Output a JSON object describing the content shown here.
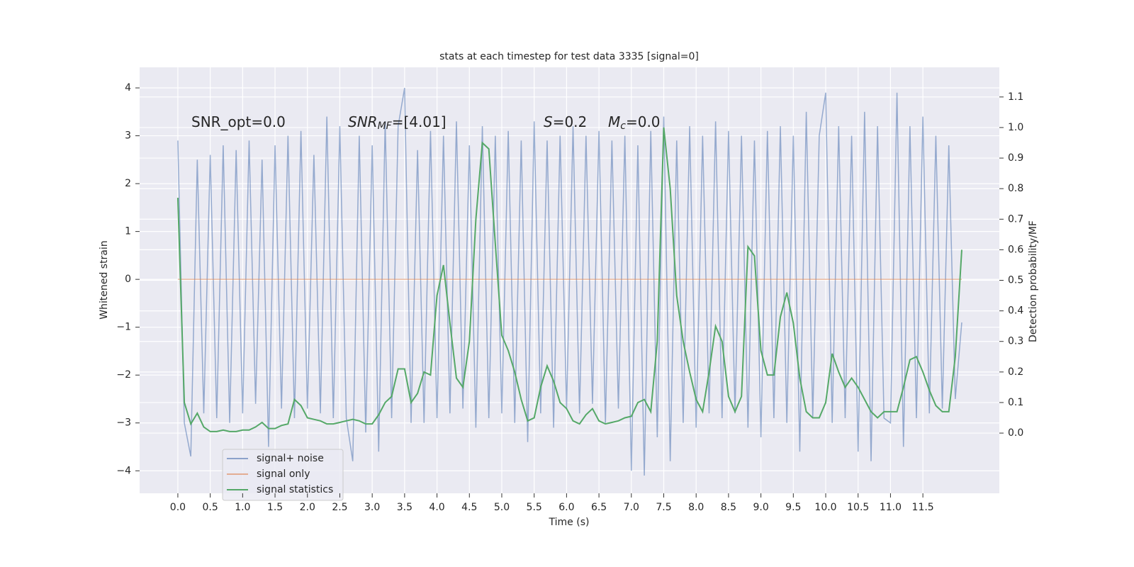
{
  "chart_data": {
    "type": "line",
    "title": "stats at each timestep for test data 3335 [signal=0]",
    "xlabel": "Time (s)",
    "ylabel": "Whitened strain",
    "y2label": "Detection probability/MF",
    "annotations": [
      {
        "text": "SNR_opt=0.0"
      },
      {
        "symbol": "SNR",
        "sub": "MF",
        "text": "=[4.01]"
      },
      {
        "symbol": "S",
        "text": "=0.2"
      },
      {
        "symbol": "M",
        "sub": "c",
        "text": "=0.0"
      }
    ],
    "xlim": [
      -0.59,
      12.68
    ],
    "ylim": [
      -4.47,
      4.43
    ],
    "y2lim": [
      -0.197,
      1.197
    ],
    "xticks": [
      {
        "value": 0,
        "label": "0.0"
      },
      {
        "value": 0.5,
        "label": "0.5"
      },
      {
        "value": 1,
        "label": "1.0"
      },
      {
        "value": 1.5,
        "label": "1.5"
      },
      {
        "value": 2,
        "label": "2.0"
      },
      {
        "value": 2.5,
        "label": "2.5"
      },
      {
        "value": 3,
        "label": "3.0"
      },
      {
        "value": 3.5,
        "label": "3.5"
      },
      {
        "value": 4,
        "label": "4.0"
      },
      {
        "value": 4.5,
        "label": "4.5"
      },
      {
        "value": 5,
        "label": "5.0"
      },
      {
        "value": 5.5,
        "label": "5.5"
      },
      {
        "value": 6,
        "label": "6.0"
      },
      {
        "value": 6.5,
        "label": "6.5"
      },
      {
        "value": 7,
        "label": "7.0"
      },
      {
        "value": 7.5,
        "label": "7.5"
      },
      {
        "value": 8,
        "label": "8.0"
      },
      {
        "value": 8.5,
        "label": "8.5"
      },
      {
        "value": 9,
        "label": "9.0"
      },
      {
        "value": 9.5,
        "label": "9.5"
      },
      {
        "value": 10,
        "label": "10.0"
      },
      {
        "value": 10.5,
        "label": "10.5"
      },
      {
        "value": 11,
        "label": "11.0"
      },
      {
        "value": 11.5,
        "label": "11.5"
      }
    ],
    "yticks": [
      {
        "value": -4,
        "label": "−4"
      },
      {
        "value": -3,
        "label": "−3"
      },
      {
        "value": -2,
        "label": "−2"
      },
      {
        "value": -1,
        "label": "−1"
      },
      0,
      1,
      2,
      3,
      4
    ],
    "y2ticks": [
      {
        "value": 0,
        "label": "0.0"
      },
      {
        "value": 0.1,
        "label": "0.1"
      },
      {
        "value": 0.2,
        "label": "0.2"
      },
      {
        "value": 0.3,
        "label": "0.3"
      },
      {
        "value": 0.4,
        "label": "0.4"
      },
      {
        "value": 0.5,
        "label": "0.5"
      },
      {
        "value": 0.6,
        "label": "0.6"
      },
      {
        "value": 0.7,
        "label": "0.7"
      },
      {
        "value": 0.8,
        "label": "0.8"
      },
      {
        "value": 0.9,
        "label": "0.9"
      },
      {
        "value": 1,
        "label": "1.0"
      },
      {
        "value": 1.1,
        "label": "1.1"
      }
    ],
    "grid": true,
    "legend": "lower left",
    "x": [
      0,
      0.1,
      0.2,
      0.3,
      0.4,
      0.5,
      0.6,
      0.7,
      0.8,
      0.9,
      1,
      1.1,
      1.2,
      1.3,
      1.4,
      1.5,
      1.6,
      1.7,
      1.8,
      1.9,
      2,
      2.1,
      2.2,
      2.3,
      2.4,
      2.5,
      2.6,
      2.7,
      2.8,
      2.9,
      3,
      3.1,
      3.2,
      3.3,
      3.4,
      3.5,
      3.6,
      3.7,
      3.8,
      3.9,
      4,
      4.1,
      4.2,
      4.3,
      4.4,
      4.5,
      4.6,
      4.7,
      4.8,
      4.9,
      5,
      5.1,
      5.2,
      5.3,
      5.4,
      5.5,
      5.6,
      5.7,
      5.8,
      5.9,
      6,
      6.1,
      6.2,
      6.3,
      6.4,
      6.5,
      6.6,
      6.7,
      6.8,
      6.9,
      7,
      7.1,
      7.2,
      7.3,
      7.4,
      7.5,
      7.6,
      7.7,
      7.8,
      7.9,
      8,
      8.1,
      8.2,
      8.3,
      8.4,
      8.5,
      8.6,
      8.7,
      8.8,
      8.9,
      9,
      9.1,
      9.2,
      9.3,
      9.4,
      9.5,
      9.6,
      9.7,
      9.8,
      9.9,
      10,
      10.1,
      10.2,
      10.3,
      10.4,
      10.5,
      10.6,
      10.7,
      10.8,
      10.9,
      11,
      11.1,
      11.2,
      11.3,
      11.4,
      11.5,
      11.6,
      11.7,
      11.8,
      11.9,
      12,
      12.1
    ],
    "series": [
      {
        "name": "signal+ noise",
        "color": "#4c72b0",
        "axis": "y",
        "values": [
          2.9,
          -3.0,
          -3.7,
          2.5,
          -2.8,
          2.6,
          -2.9,
          2.8,
          -3.0,
          2.7,
          -2.8,
          2.9,
          -2.6,
          2.5,
          -3.5,
          2.8,
          -2.7,
          3.0,
          -2.9,
          3.1,
          -2.7,
          2.6,
          -2.8,
          3.4,
          -2.9,
          3.2,
          -2.9,
          -3.8,
          3.0,
          -3.2,
          2.8,
          -3.6,
          3.3,
          -2.9,
          3.2,
          4.0,
          -3.0,
          2.7,
          -3.0,
          3.1,
          -2.9,
          3.0,
          -2.8,
          3.3,
          -2.7,
          2.8,
          -3.1,
          3.2,
          -2.9,
          3.0,
          -2.8,
          3.1,
          -3.0,
          2.9,
          -3.4,
          3.3,
          -2.8,
          2.9,
          -3.1,
          3.0,
          -2.7,
          3.2,
          -2.8,
          3.0,
          -2.6,
          3.1,
          -3.0,
          2.9,
          -2.7,
          3.0,
          -4.0,
          2.8,
          -4.1,
          3.1,
          -3.3,
          3.4,
          -3.8,
          2.9,
          -3.0,
          3.2,
          -3.1,
          3.0,
          -2.8,
          3.3,
          -2.9,
          3.1,
          -2.8,
          3.0,
          -3.1,
          2.9,
          -3.3,
          3.1,
          -2.9,
          3.2,
          -3.0,
          3.0,
          -3.6,
          3.5,
          -2.9,
          3.0,
          3.9,
          -3.0,
          3.2,
          -2.9,
          3.0,
          -3.6,
          3.5,
          -3.8,
          3.2,
          -2.9,
          -3.0,
          3.9,
          -3.5,
          3.2,
          -2.9,
          3.4,
          -2.8,
          3.0,
          -2.7,
          2.8,
          -2.5,
          -0.9
        ]
      },
      {
        "name": "signal only",
        "color": "#dd8452",
        "axis": "y",
        "values": [
          0,
          0,
          0,
          0,
          0,
          0,
          0,
          0,
          0,
          0,
          0,
          0,
          0,
          0,
          0,
          0,
          0,
          0,
          0,
          0,
          0,
          0,
          0,
          0,
          0,
          0,
          0,
          0,
          0,
          0,
          0,
          0,
          0,
          0,
          0,
          0,
          0,
          0,
          0,
          0,
          0,
          0,
          0,
          0,
          0,
          0,
          0,
          0,
          0,
          0,
          0,
          0,
          0,
          0,
          0,
          0,
          0,
          0,
          0,
          0,
          0,
          0,
          0,
          0,
          0,
          0,
          0,
          0,
          0,
          0,
          0,
          0,
          0,
          0,
          0,
          0,
          0,
          0,
          0,
          0,
          0,
          0,
          0,
          0,
          0,
          0,
          0,
          0,
          0,
          0,
          0,
          0,
          0,
          0,
          0,
          0,
          0,
          0,
          0,
          0,
          0,
          0,
          0,
          0,
          0,
          0,
          0,
          0,
          0,
          0,
          0,
          0,
          0,
          0,
          0,
          0,
          0,
          0,
          0,
          0,
          0,
          0
        ]
      },
      {
        "name": "signal statistics",
        "color": "#55a868",
        "axis": "y2",
        "values": [
          0.77,
          0.1,
          0.03,
          0.065,
          0.02,
          0.005,
          0.005,
          0.01,
          0.005,
          0.005,
          0.01,
          0.01,
          0.02,
          0.035,
          0.015,
          0.015,
          0.025,
          0.03,
          0.11,
          0.09,
          0.05,
          0.045,
          0.04,
          0.03,
          0.03,
          0.035,
          0.04,
          0.045,
          0.04,
          0.03,
          0.03,
          0.06,
          0.1,
          0.12,
          0.21,
          0.21,
          0.1,
          0.13,
          0.2,
          0.19,
          0.45,
          0.55,
          0.36,
          0.18,
          0.15,
          0.3,
          0.7,
          0.95,
          0.93,
          0.62,
          0.32,
          0.27,
          0.2,
          0.11,
          0.04,
          0.05,
          0.15,
          0.22,
          0.17,
          0.1,
          0.08,
          0.04,
          0.03,
          0.06,
          0.08,
          0.04,
          0.03,
          0.035,
          0.04,
          0.05,
          0.055,
          0.1,
          0.11,
          0.07,
          0.3,
          1.0,
          0.8,
          0.45,
          0.3,
          0.2,
          0.11,
          0.07,
          0.2,
          0.35,
          0.3,
          0.12,
          0.07,
          0.12,
          0.61,
          0.58,
          0.27,
          0.19,
          0.19,
          0.38,
          0.46,
          0.36,
          0.18,
          0.07,
          0.05,
          0.05,
          0.1,
          0.26,
          0.2,
          0.15,
          0.18,
          0.15,
          0.11,
          0.07,
          0.05,
          0.07,
          0.07,
          0.07,
          0.15,
          0.24,
          0.25,
          0.2,
          0.14,
          0.09,
          0.07,
          0.07,
          0.25,
          0.6
        ]
      }
    ]
  }
}
